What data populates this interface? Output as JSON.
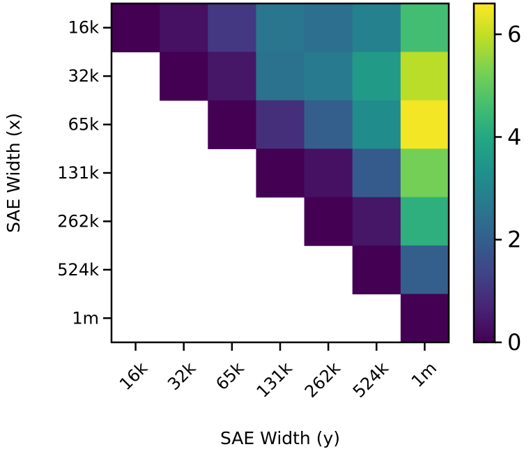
{
  "chart_data": {
    "type": "heatmap",
    "colormap": "viridis",
    "xlabel": "SAE Width (y)",
    "ylabel": "SAE Width (x)",
    "x_categories": [
      "16k",
      "32k",
      "65k",
      "131k",
      "262k",
      "524k",
      "1m"
    ],
    "y_categories": [
      "16k",
      "32k",
      "65k",
      "131k",
      "262k",
      "524k",
      "1m"
    ],
    "values": [
      [
        0.0,
        0.3,
        1.1,
        2.6,
        2.4,
        2.9,
        4.6
      ],
      [
        null,
        0.0,
        0.4,
        2.5,
        2.7,
        3.6,
        5.9
      ],
      [
        null,
        null,
        0.0,
        0.9,
        2.0,
        3.2,
        6.5
      ],
      [
        null,
        null,
        null,
        0.0,
        0.3,
        1.9,
        5.2
      ],
      [
        null,
        null,
        null,
        null,
        0.0,
        0.4,
        4.2
      ],
      [
        null,
        null,
        null,
        null,
        null,
        0.0,
        2.0
      ],
      [
        null,
        null,
        null,
        null,
        null,
        null,
        0.0
      ]
    ],
    "colorbar": {
      "vmin": 0,
      "vmax": 6.6,
      "ticks": [
        0,
        2,
        4,
        6
      ],
      "tick_labels": [
        "0",
        "2",
        "4",
        "6"
      ]
    }
  }
}
